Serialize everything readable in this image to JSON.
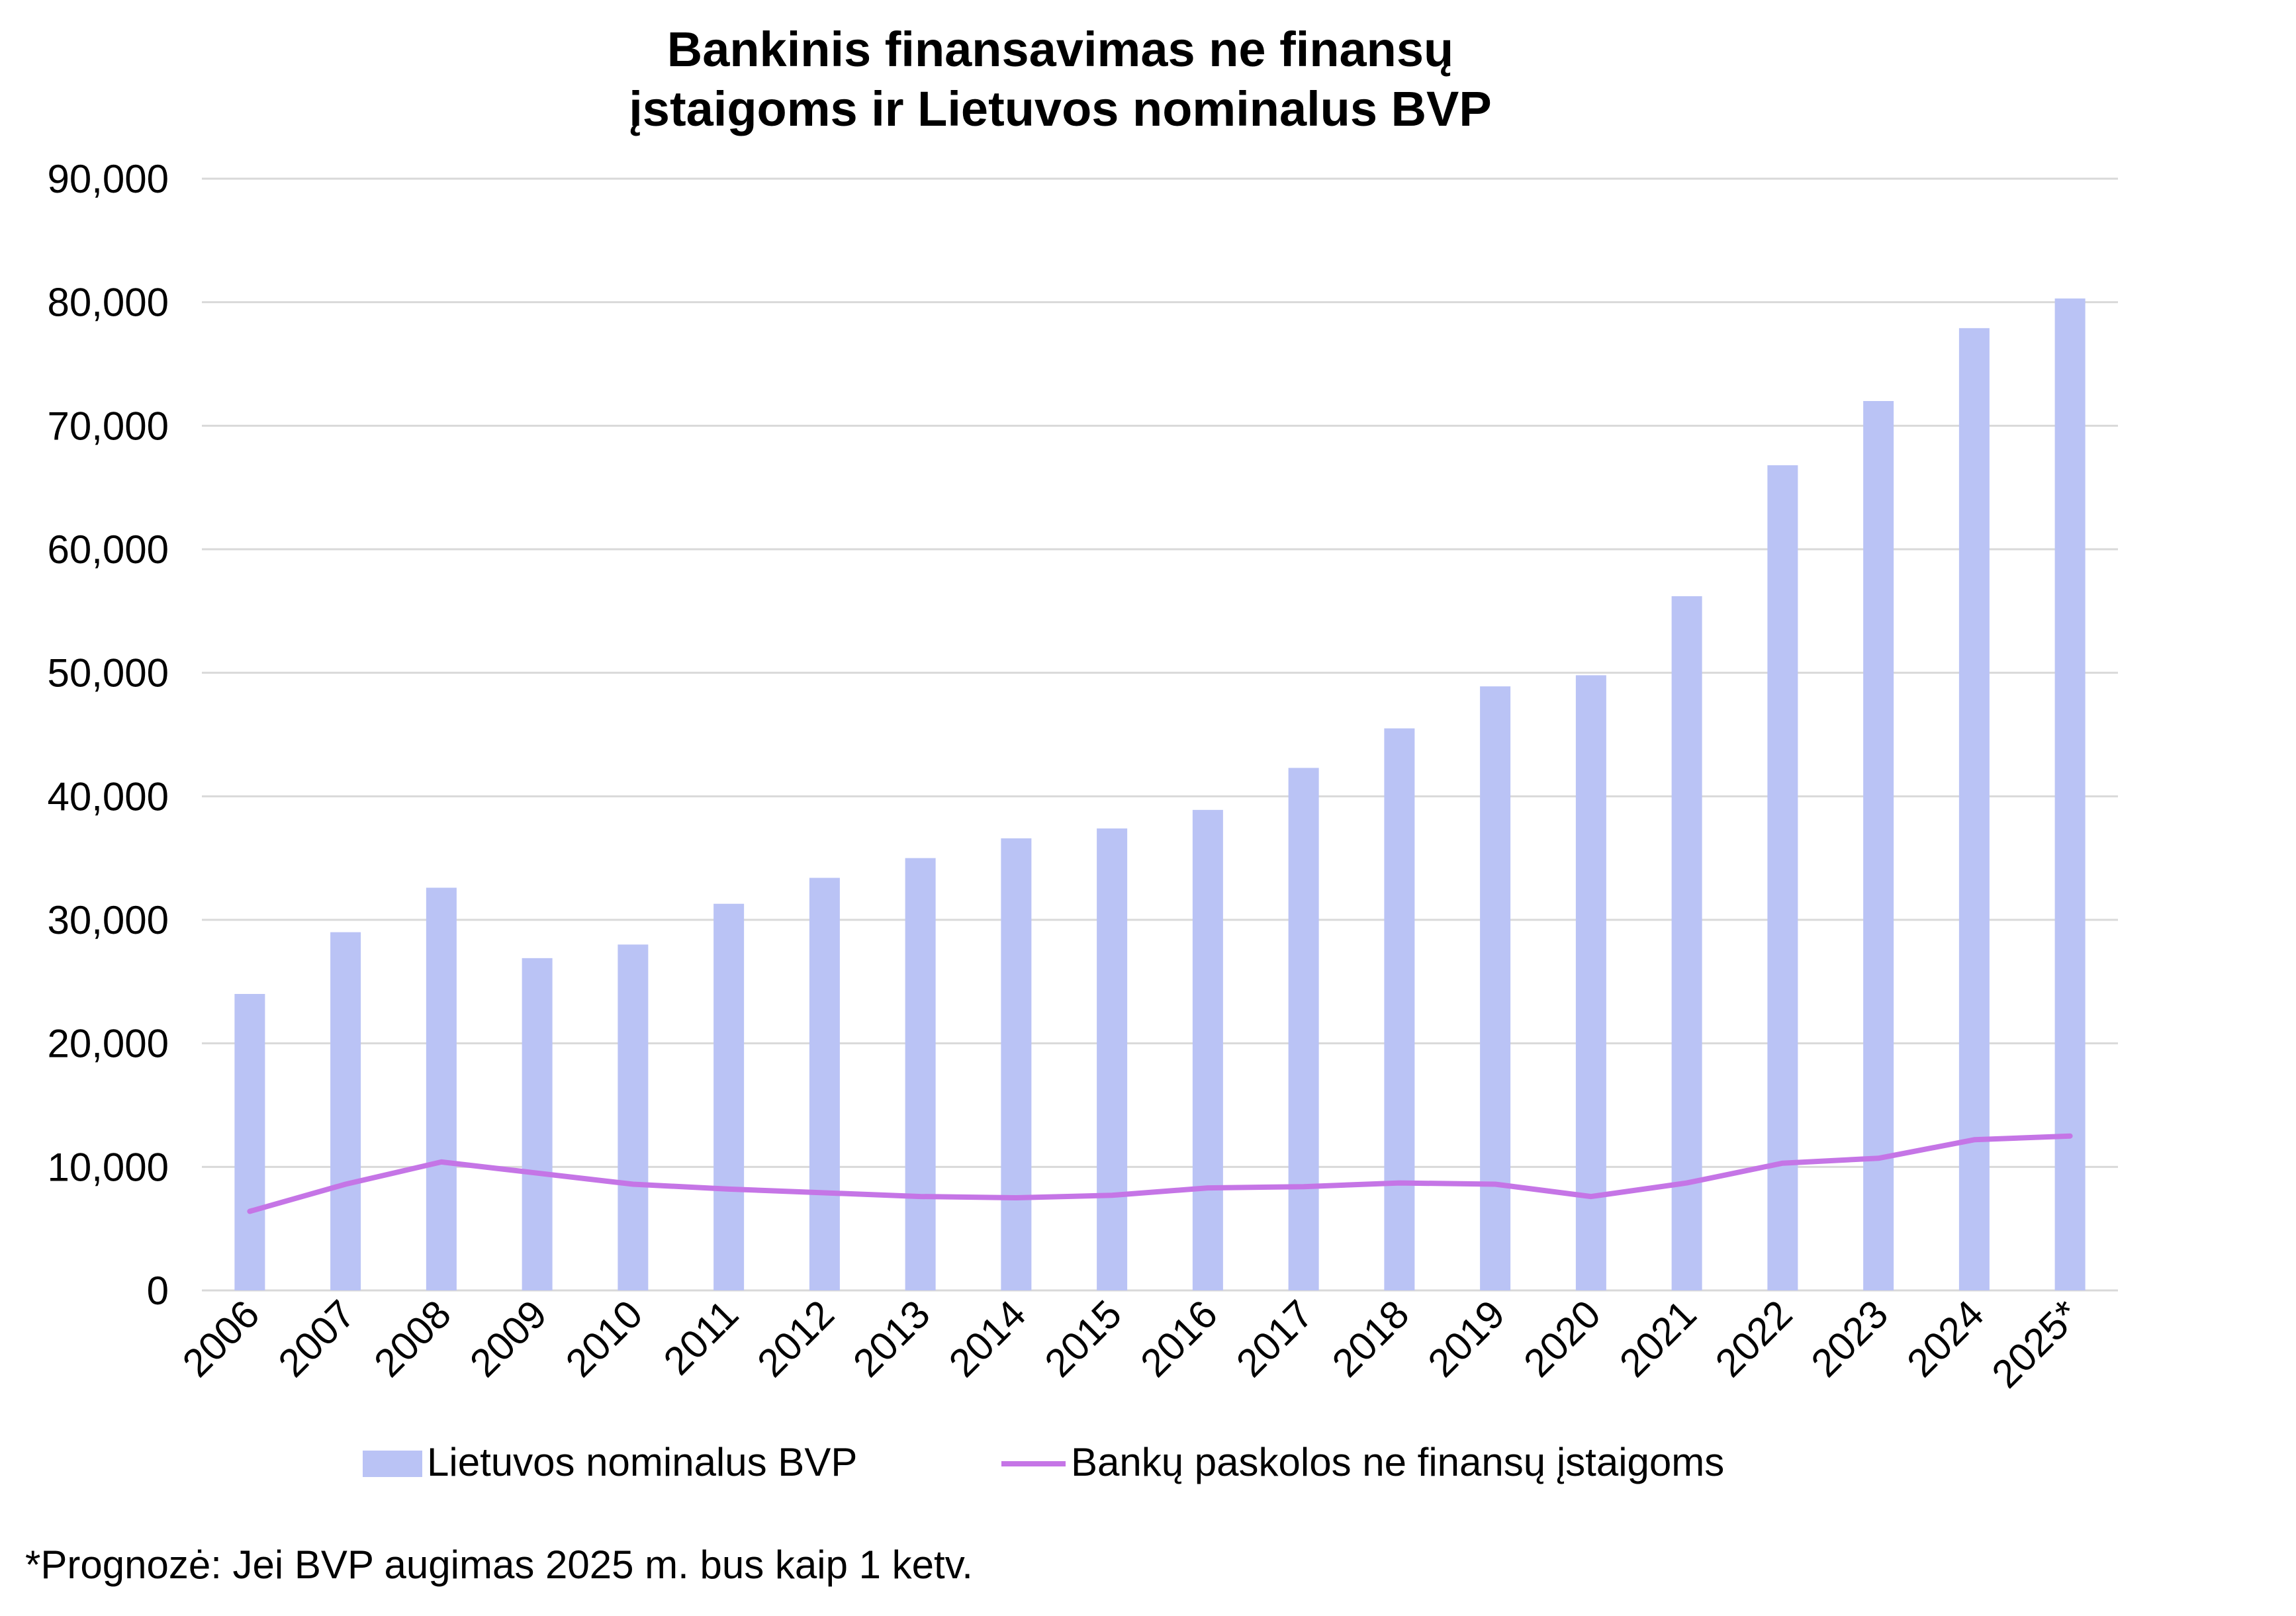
{
  "chart_data": {
    "type": "bar",
    "title_lines": [
      "Bankinis finansavimas ne finansų",
      "įstaigoms ir Lietuvos nominalus BVP"
    ],
    "categories": [
      "2006",
      "2007",
      "2008",
      "2009",
      "2010",
      "2011",
      "2012",
      "2013",
      "2014",
      "2015",
      "2016",
      "2017",
      "2018",
      "2019",
      "2020",
      "2021",
      "2022",
      "2023",
      "2024",
      "2025*"
    ],
    "y_tick_labels": [
      "0",
      "10,000",
      "20,000",
      "30,000",
      "40,000",
      "50,000",
      "60,000",
      "70,000",
      "80,000",
      "90,000"
    ],
    "ylim": [
      0,
      90000
    ],
    "grid": true,
    "legend_position": "bottom",
    "series": [
      {
        "name": "Lietuvos nominalus BVP",
        "type": "bar",
        "color": "#bac3f5",
        "values": [
          24000,
          29000,
          32600,
          26900,
          28000,
          31300,
          33400,
          35000,
          36600,
          37400,
          38900,
          42300,
          45500,
          48900,
          49800,
          56200,
          66800,
          72000,
          77900,
          80300
        ]
      },
      {
        "name": "Bankų paskolos ne finansų įstaigoms",
        "type": "line",
        "color": "#c575e6",
        "values": [
          6400,
          8600,
          10400,
          9500,
          8600,
          8200,
          7900,
          7600,
          7500,
          7700,
          8300,
          8400,
          8700,
          8600,
          7600,
          8700,
          10300,
          10700,
          12200,
          12500
        ]
      }
    ]
  },
  "footnote": "*Prognozė: Jei BVP augimas 2025 m. bus kaip 1 ketv."
}
